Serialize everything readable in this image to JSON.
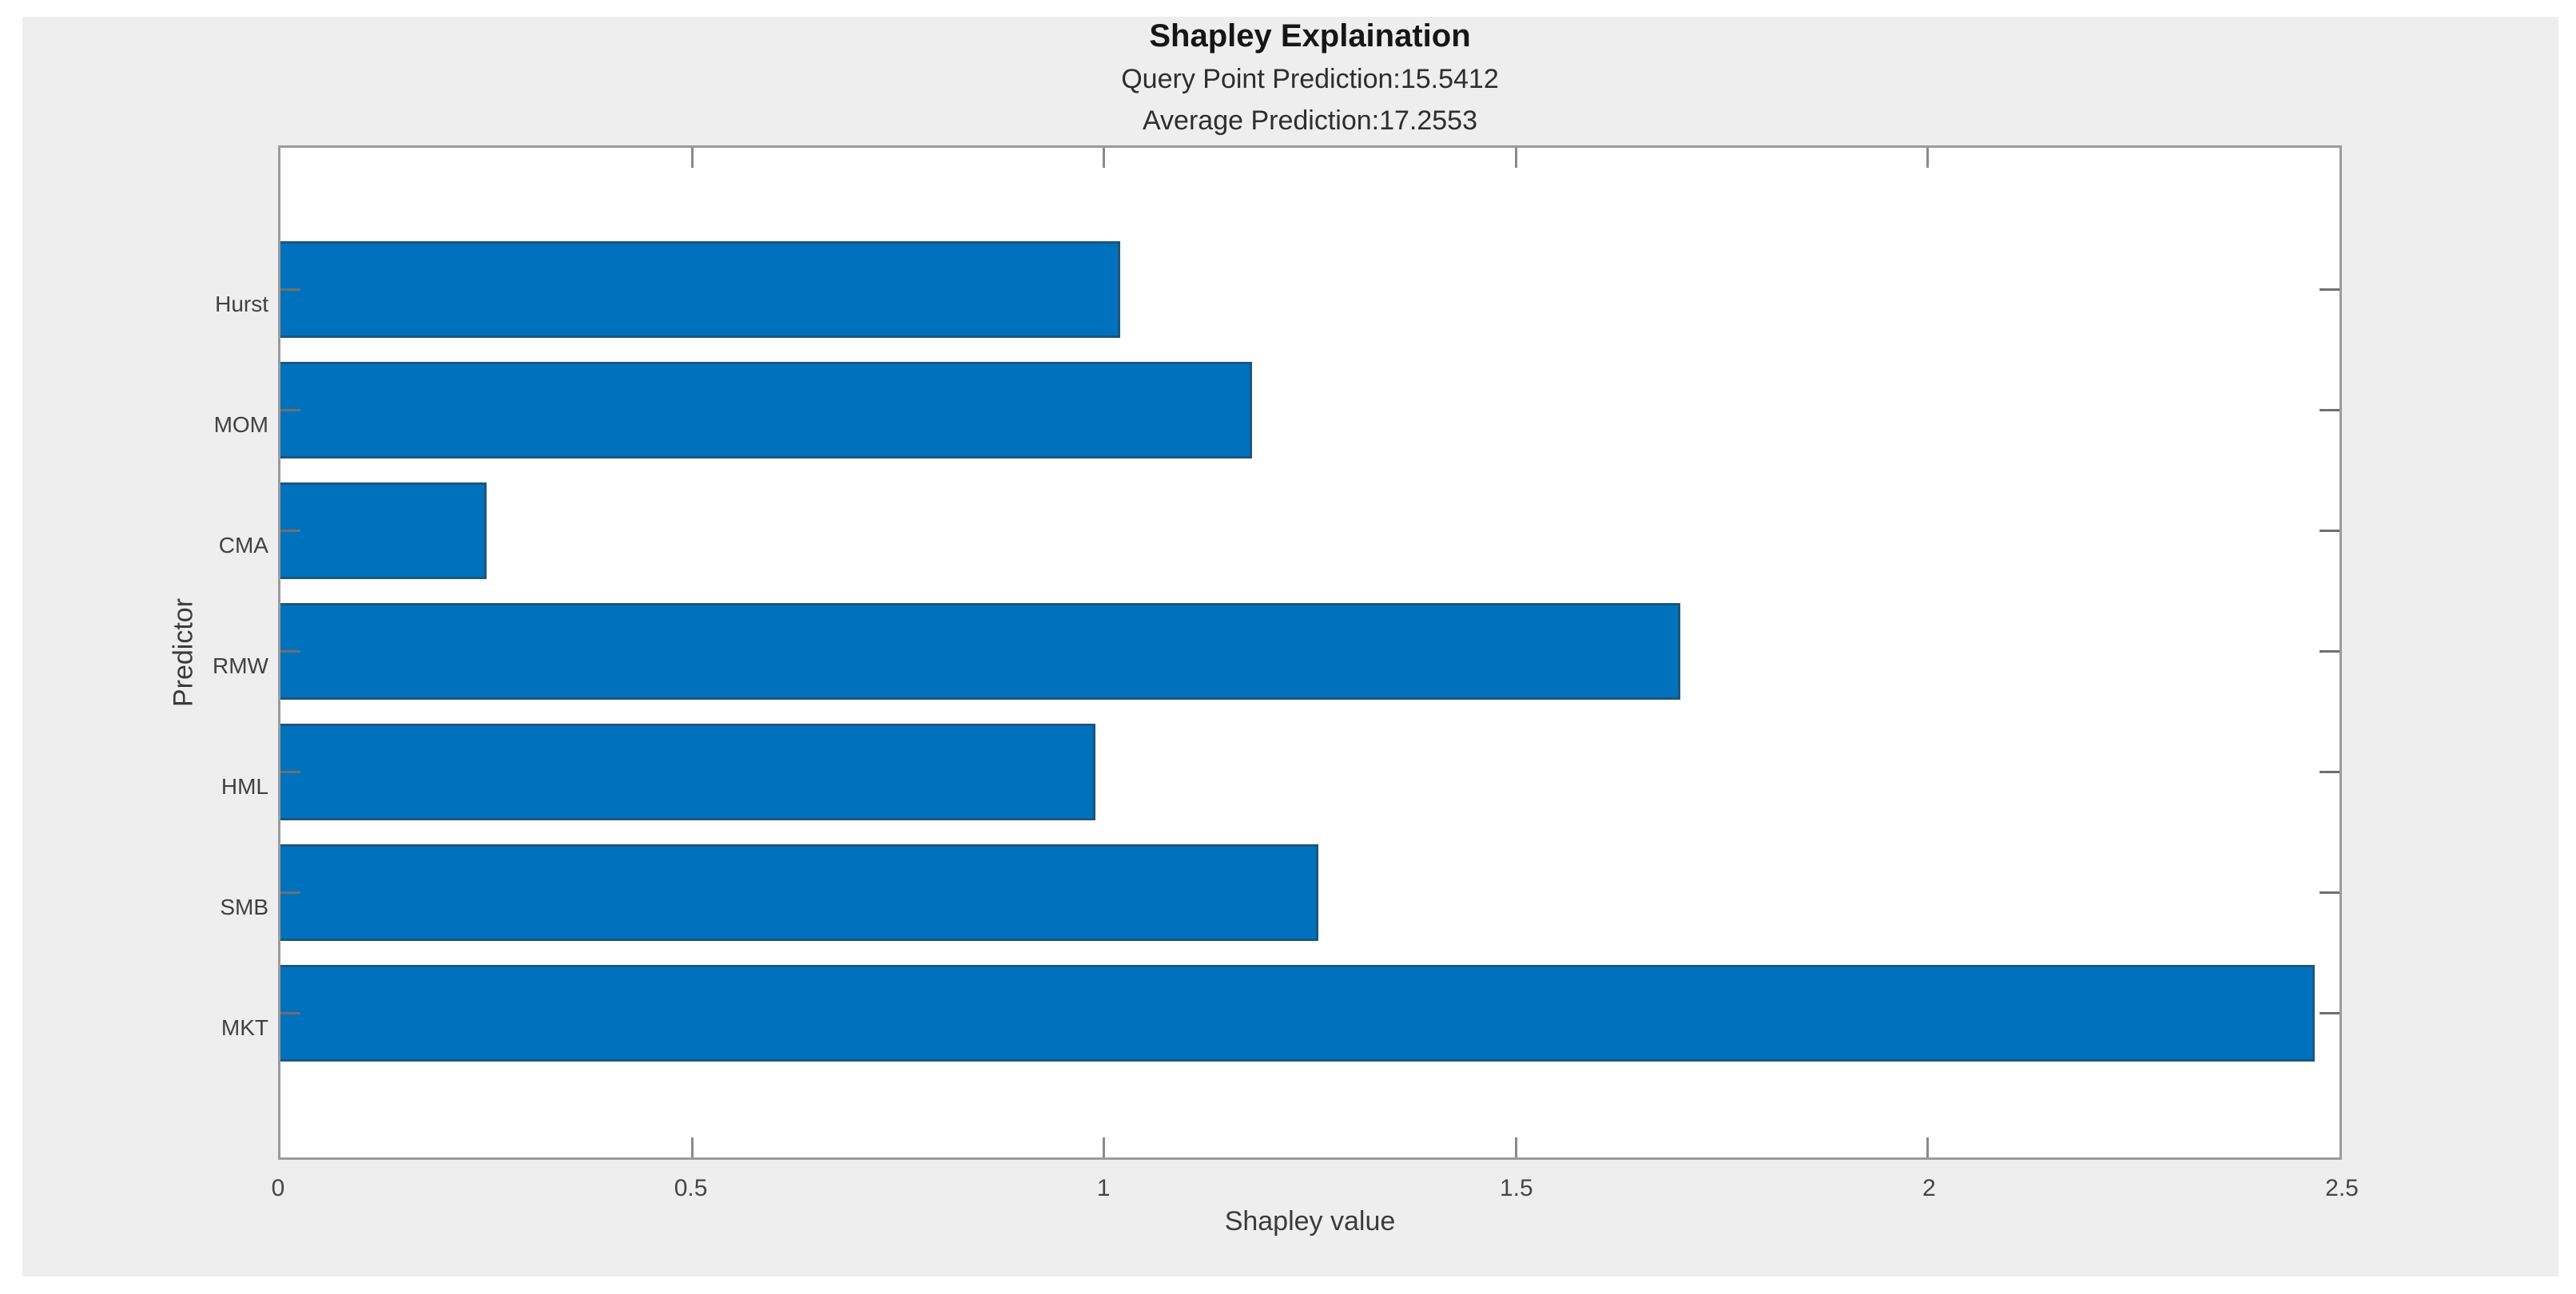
{
  "chart_data": {
    "type": "bar",
    "orientation": "horizontal",
    "title": "Shapley Explaination",
    "subtitles": [
      "Query Point Prediction:15.5412",
      "Average Prediction:17.2553"
    ],
    "categories": [
      "Hurst",
      "MOM",
      "CMA",
      "RMW",
      "HML",
      "SMB",
      "MKT"
    ],
    "values": [
      1.02,
      1.18,
      0.25,
      1.7,
      0.99,
      1.26,
      2.47
    ],
    "xlabel": "Shapley value",
    "ylabel": "Predictor",
    "xlim": [
      0,
      2.5
    ],
    "xticks": [
      0,
      0.5,
      1,
      1.5,
      2,
      2.5
    ],
    "xtick_labels": [
      "0",
      "0.5",
      "1",
      "1.5",
      "2",
      "2.5"
    ],
    "bar_color": "#0072BD",
    "bar_edge_color": "#1b567f",
    "figure_background": "#eeeeee",
    "plot_background": "#ffffff",
    "grid": false,
    "legend": null
  }
}
